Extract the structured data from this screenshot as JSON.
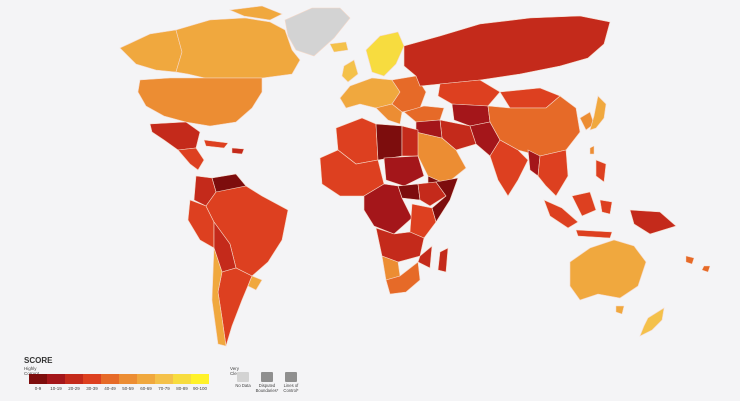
{
  "legend": {
    "title": "SCORE",
    "low_label": "Highly Corrupt",
    "high_label": "Very Clean",
    "bins": [
      {
        "label": "0-9",
        "color": "#7d0d0d"
      },
      {
        "label": "10-19",
        "color": "#a4161a"
      },
      {
        "label": "20-29",
        "color": "#c42a1b"
      },
      {
        "label": "30-39",
        "color": "#dd4020"
      },
      {
        "label": "40-49",
        "color": "#e66a28"
      },
      {
        "label": "50-59",
        "color": "#ec8d33"
      },
      {
        "label": "60-69",
        "color": "#f0a83e"
      },
      {
        "label": "70-79",
        "color": "#f4c14a"
      },
      {
        "label": "80-89",
        "color": "#f7dc3f"
      },
      {
        "label": "90-100",
        "color": "#fff22a"
      }
    ],
    "no_data": {
      "label": "No Data",
      "color": "#d3d3d3"
    },
    "disputed": {
      "label": "Disputed Boundaries*",
      "color": "#8f8f8f"
    },
    "lines_of_control": {
      "label": "Lines of Control*",
      "color": "#8f8f8f"
    }
  },
  "colors": {
    "background": "#f4f4f6",
    "borders": "#f6d8c8"
  }
}
